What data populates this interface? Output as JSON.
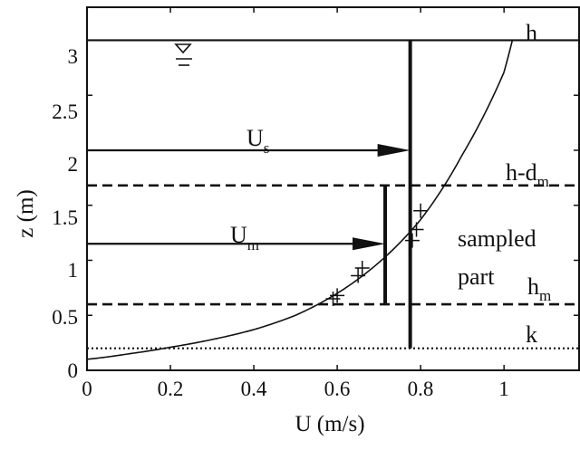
{
  "chart_data": {
    "type": "line",
    "xlabel": "U (m/s)",
    "ylabel": "z (m)",
    "xlim": [
      0,
      1.18
    ],
    "ylim": [
      0,
      3.3
    ],
    "x_ticks": [
      0,
      0.2,
      0.4,
      0.6,
      0.8,
      1
    ],
    "x_tick_labels": [
      "0",
      "0.2",
      "0.4",
      "0.6",
      "0.8",
      "1"
    ],
    "y_ticks": [
      0,
      0.5,
      1,
      1.5,
      2,
      2.5,
      3
    ],
    "y_tick_labels": [
      "0",
      "0.5",
      "1",
      "1.5",
      "2",
      "2.5",
      "3"
    ],
    "grid": false,
    "profile": {
      "x": [
        0.0,
        0.1,
        0.2,
        0.3,
        0.4,
        0.5,
        0.6,
        0.7,
        0.8,
        0.9,
        1.0,
        1.02
      ],
      "y": [
        0.1,
        0.15,
        0.21,
        0.28,
        0.37,
        0.5,
        0.7,
        0.98,
        1.37,
        1.96,
        2.71,
        3.0
      ]
    },
    "measured_points": {
      "x": [
        0.59,
        0.6,
        0.65,
        0.66,
        0.78,
        0.79,
        0.8
      ],
      "y": [
        0.65,
        0.68,
        0.86,
        0.93,
        1.18,
        1.28,
        1.45
      ]
    },
    "horizontal_lines": [
      {
        "y": 3.0,
        "style": "solid",
        "label": "h"
      },
      {
        "y": 1.68,
        "style": "dashed",
        "label": "h-d",
        "label_sub": "m"
      },
      {
        "y": 0.6,
        "style": "dashed",
        "label": "h",
        "label_sub": "m"
      },
      {
        "y": 0.2,
        "style": "dotted",
        "label": "k"
      }
    ],
    "vertical_lines": [
      {
        "x": 0.775,
        "y0": 0.2,
        "y1": 3.0
      },
      {
        "x": 0.715,
        "y0": 0.6,
        "y1": 1.68
      }
    ],
    "arrows": [
      {
        "y": 2.0,
        "x0": 0.0,
        "x1": 0.775,
        "label": "U",
        "label_sub": "s"
      },
      {
        "y": 1.15,
        "x0": 0.0,
        "x1": 0.715,
        "label": "U",
        "label_sub": "m"
      }
    ],
    "annotations": {
      "sampled_line1": "sampled",
      "sampled_line2": "part"
    },
    "water_surface_symbol": "water-surface-symbol"
  }
}
